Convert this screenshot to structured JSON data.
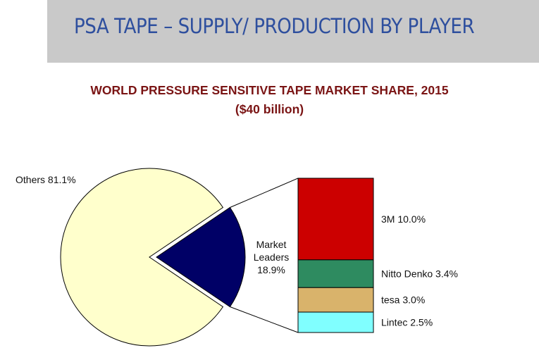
{
  "slide": {
    "title": "PSA TAPE – SUPPLY/ PRODUCTION BY PLAYER"
  },
  "chart_data": {
    "type": "pie",
    "title": "WORLD PRESSURE SENSITIVE TAPE MARKET SHARE, 2015",
    "subtitle": "($40 billion)",
    "slices": [
      {
        "label": "Others",
        "value": 81.1,
        "display": "Others 81.1%",
        "color": "#ffffcc"
      },
      {
        "label": "Market Leaders",
        "value": 18.9,
        "display_lines": [
          "Market",
          "Leaders",
          "18.9%"
        ],
        "color": "#000066"
      }
    ],
    "breakdown": {
      "of": "Market Leaders",
      "type": "stacked_bar",
      "segments": [
        {
          "label": "3M",
          "value": 10.0,
          "display": "3M 10.0%",
          "color": "#cc0000"
        },
        {
          "label": "Nitto Denko",
          "value": 3.4,
          "display": "Nitto Denko 3.4%",
          "color": "#2e8b60"
        },
        {
          "label": "tesa",
          "value": 3.0,
          "display": "tesa 3.0%",
          "color": "#d9b36b"
        },
        {
          "label": "Lintec",
          "value": 2.5,
          "display": "Lintec 2.5%",
          "color": "#80ffff"
        }
      ]
    }
  }
}
